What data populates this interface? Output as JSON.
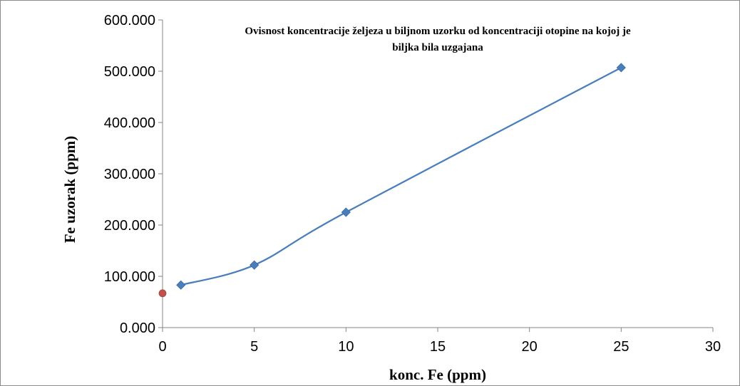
{
  "chart_data": {
    "type": "scatter",
    "title_lines": [
      "Ovisnost koncentracije željeza u biljnom uzorku od koncentraciji otopine na kojoj je",
      "biljka bila uzgajana"
    ],
    "xlabel": "konc. Fe (ppm)",
    "ylabel": "Fe uzorak (ppm)",
    "xlim": [
      0,
      30
    ],
    "ylim": [
      0,
      600
    ],
    "x_ticks": [
      "0",
      "5",
      "10",
      "15",
      "20",
      "25",
      "30"
    ],
    "y_ticks": [
      "0.000",
      "100.000",
      "200.000",
      "300.000",
      "400.000",
      "500.000",
      "600.000"
    ],
    "grid": false,
    "legend": "none",
    "series": [
      {
        "marker": "diamond",
        "color": "#4a7ebb",
        "line": "smooth",
        "points": [
          {
            "x": 1,
            "y": 83
          },
          {
            "x": 5,
            "y": 122
          },
          {
            "x": 10,
            "y": 225
          },
          {
            "x": 25,
            "y": 507
          }
        ]
      },
      {
        "marker": "circle",
        "color": "#c0504d",
        "line": "none",
        "points": [
          {
            "x": 0,
            "y": 67
          }
        ]
      }
    ]
  }
}
